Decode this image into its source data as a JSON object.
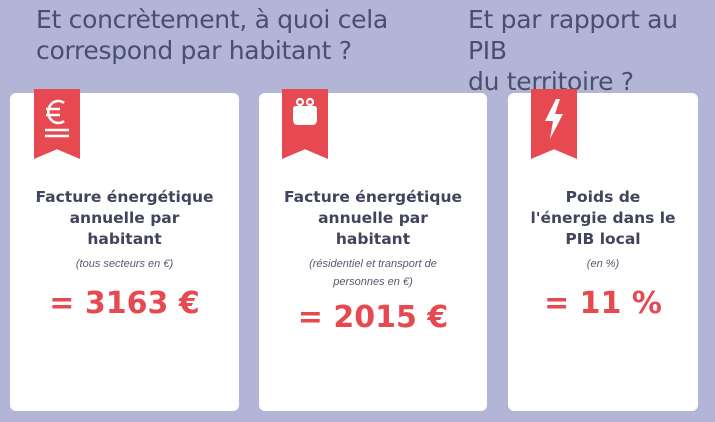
{
  "headings": {
    "left": [
      "Et concrètement, à quoi cela",
      "correspond par habitant ?"
    ],
    "right": [
      "Et par rapport au PIB",
      "du territoire ?"
    ]
  },
  "cards": [
    {
      "icon": "euro-icon",
      "title": [
        "Facture énergétique",
        "annuelle par",
        "habitant"
      ],
      "note": [
        "(tous secteurs en €)"
      ],
      "value": "= 3163 €"
    },
    {
      "icon": "purse-icon",
      "title": [
        "Facture énergétique",
        "annuelle par",
        "habitant"
      ],
      "note": [
        "(résidentiel et transport de",
        "personnes en €)"
      ],
      "value": "= 2015 €"
    },
    {
      "icon": "lightning-icon",
      "title": [
        "Poids de",
        "l'énergie dans le",
        "PIB local"
      ],
      "note": [
        "(en %)"
      ],
      "value": "= 11 %"
    }
  ],
  "colors": {
    "background": "#b3b5d6",
    "accent": "#e64950",
    "heading": "#4a4f6e",
    "card": "#ffffff"
  }
}
